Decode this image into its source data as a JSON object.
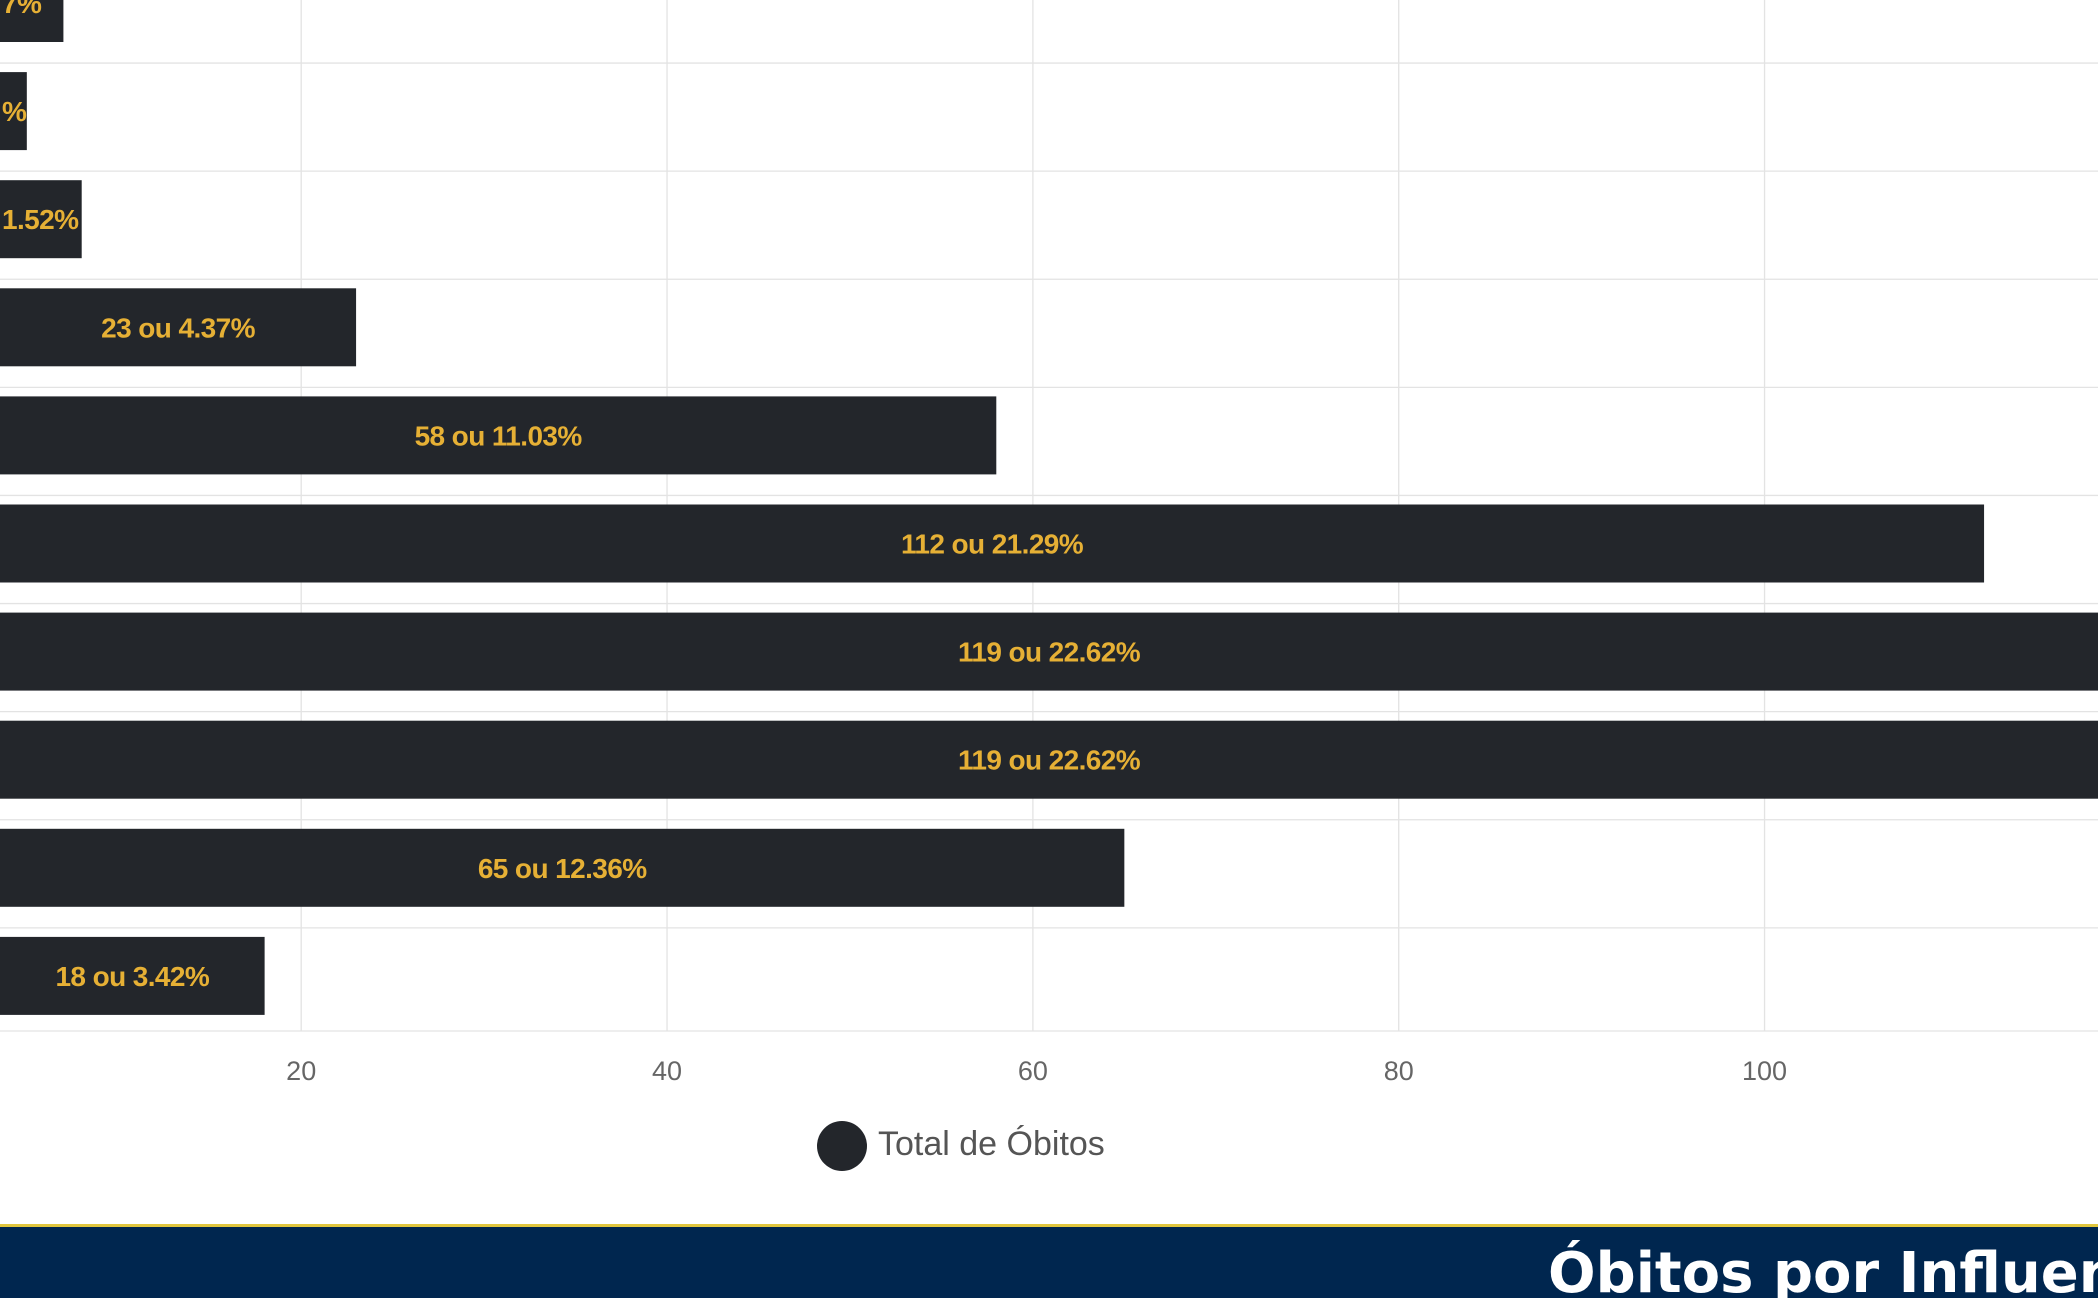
{
  "chart_data": {
    "type": "bar",
    "orientation": "horizontal",
    "legend": {
      "entries": [
        "Total de Óbitos"
      ],
      "placement": "bottom"
    },
    "xlim": [
      3.5,
      122.5
    ],
    "x_ticks": [
      20,
      40,
      60,
      80,
      100
    ],
    "grid": true,
    "series": [
      {
        "color": "#23262b",
        "values": [
          7,
          5,
          8,
          23,
          58,
          112,
          119,
          119,
          65,
          18
        ],
        "labels": [
          "7%",
          "%",
          "1.52%",
          "23 ou 4.37%",
          "58 ou 11.03%",
          "112 ou 21.29%",
          "119 ou 22.62%",
          "119 ou 22.62%",
          "65 ou 12.36%",
          "18 ou 3.42%"
        ]
      }
    ],
    "label_color": "#e6b035"
  },
  "footer": {
    "title": "Óbitos por Influen",
    "background": "#00264f",
    "border": "#e0c63d"
  }
}
